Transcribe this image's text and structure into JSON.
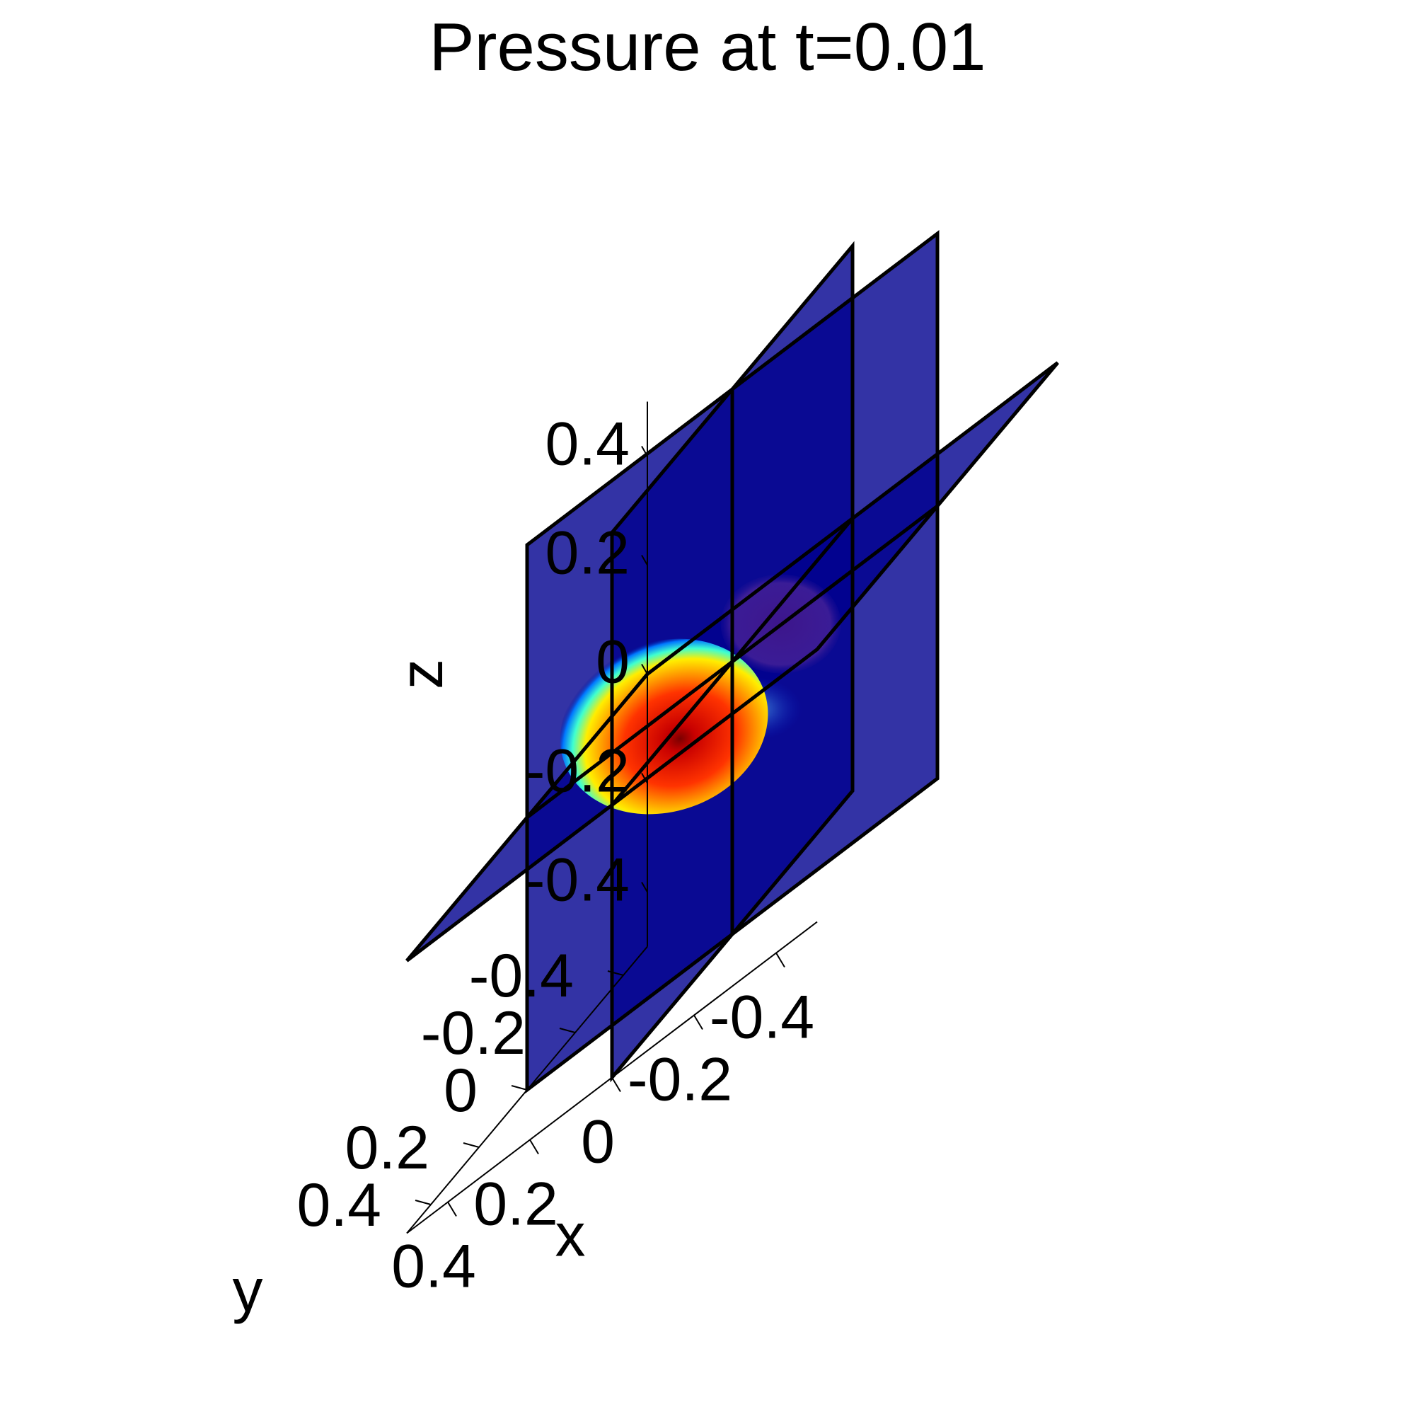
{
  "chart_data": {
    "type": "volume-slice-3d",
    "title": "Pressure at t=0.01",
    "xlabel": "x",
    "ylabel": "y",
    "zlabel": "z",
    "x_ticks": [
      "0.4",
      "0.2",
      "0",
      "-0.2",
      "-0.4"
    ],
    "y_ticks": [
      "-0.4",
      "-0.2",
      "0",
      "0.2",
      "0.4"
    ],
    "z_ticks": [
      "0.4",
      "0.2",
      "0",
      "-0.2",
      "-0.4"
    ],
    "xlim": [
      -0.5,
      0.5
    ],
    "ylim": [
      -0.5,
      0.5
    ],
    "zlim": [
      -0.5,
      0.5
    ],
    "slices": [
      {
        "plane": "x",
        "value": 0
      },
      {
        "plane": "y",
        "value": 0
      },
      {
        "plane": "z",
        "value": 0
      }
    ],
    "colormap": "jet",
    "background_color": "#00008f"
  }
}
